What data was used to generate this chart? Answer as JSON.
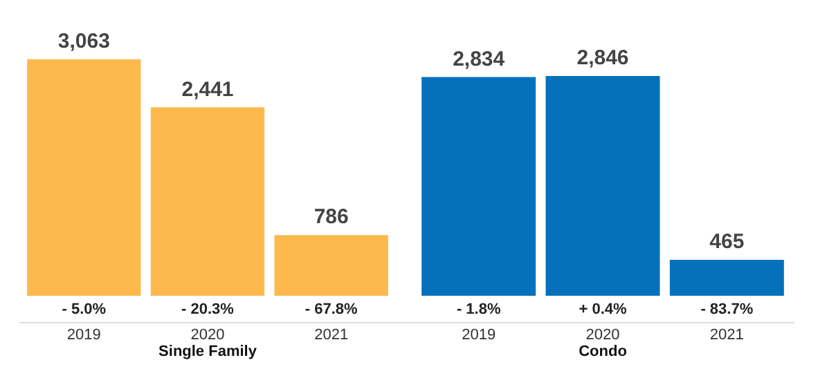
{
  "chart_data": [
    {
      "type": "bar",
      "categories": [
        "2019",
        "2020",
        "2021"
      ],
      "xlabel": "Single Family",
      "values": [
        3063,
        2441,
        786
      ],
      "value_labels": [
        "3,063",
        "2,441",
        "786"
      ],
      "color": "#fdb94e",
      "grid": false,
      "tick_labels": "x",
      "annotations": [
        "- 5.0%",
        "- 20.3%",
        "- 67.8%"
      ]
    },
    {
      "type": "bar",
      "categories": [
        "2019",
        "2020",
        "2021"
      ],
      "xlabel": "Condo",
      "values": [
        2834,
        2846,
        465
      ],
      "value_labels": [
        "2,834",
        "2,846",
        "465"
      ],
      "color": "#0571bc",
      "grid": false,
      "tick_labels": "x",
      "annotations": [
        "- 1.8%",
        "+ 0.4%",
        "- 83.7%"
      ]
    }
  ]
}
